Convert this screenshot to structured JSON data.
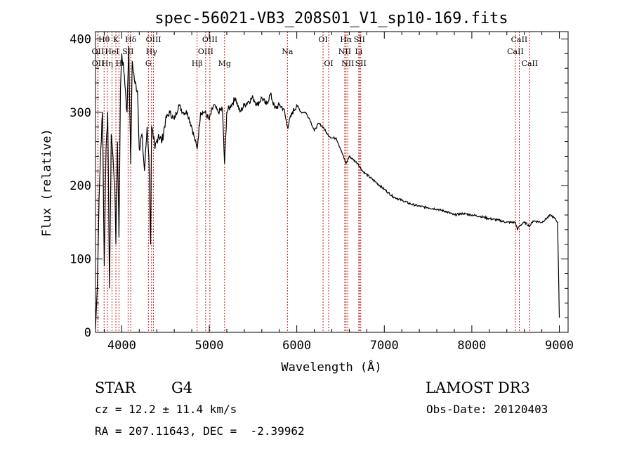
{
  "chart_data": {
    "type": "line",
    "title": "spec-56021-VB3_208S01_V1_sp10-169.fits",
    "xlabel": "Wavelength (Å)",
    "ylabel": "Flux (relative)",
    "xlim": [
      3700,
      9100
    ],
    "ylim": [
      0,
      410
    ],
    "xticks": [
      4000,
      5000,
      6000,
      7000,
      8000,
      9000
    ],
    "yticks": [
      0,
      100,
      200,
      300,
      400
    ],
    "series": [
      {
        "name": "spectrum",
        "x": [
          3700,
          3720,
          3740,
          3760,
          3780,
          3800,
          3820,
          3840,
          3860,
          3880,
          3900,
          3920,
          3933,
          3950,
          3968,
          3985,
          4000,
          4030,
          4060,
          4080,
          4102,
          4120,
          4150,
          4180,
          4200,
          4230,
          4260,
          4290,
          4310,
          4330,
          4340,
          4360,
          4380,
          4420,
          4460,
          4500,
          4550,
          4600,
          4650,
          4700,
          4750,
          4800,
          4861,
          4900,
          4950,
          5000,
          5050,
          5100,
          5150,
          5175,
          5200,
          5250,
          5300,
          5350,
          5400,
          5450,
          5500,
          5550,
          5600,
          5650,
          5700,
          5750,
          5800,
          5850,
          5893,
          5950,
          6000,
          6050,
          6100,
          6150,
          6200,
          6250,
          6300,
          6350,
          6400,
          6450,
          6500,
          6563,
          6600,
          6650,
          6700,
          6750,
          6800,
          6900,
          7000,
          7100,
          7200,
          7300,
          7400,
          7500,
          7600,
          7700,
          7800,
          7900,
          8000,
          8100,
          8200,
          8300,
          8400,
          8498,
          8520,
          8542,
          8600,
          8662,
          8700,
          8800,
          8900,
          8950,
          8980,
          9000
        ],
        "y": [
          5,
          60,
          180,
          250,
          300,
          90,
          250,
          300,
          60,
          270,
          240,
          200,
          120,
          260,
          130,
          330,
          380,
          350,
          300,
          390,
          230,
          370,
          340,
          330,
          250,
          270,
          220,
          280,
          240,
          120,
          280,
          265,
          250,
          270,
          260,
          290,
          300,
          290,
          310,
          300,
          300,
          280,
          250,
          300,
          300,
          290,
          310,
          300,
          305,
          230,
          300,
          310,
          320,
          300,
          310,
          315,
          320,
          310,
          320,
          310,
          325,
          305,
          310,
          305,
          280,
          300,
          310,
          300,
          300,
          290,
          275,
          285,
          280,
          270,
          265,
          265,
          250,
          230,
          240,
          235,
          230,
          220,
          215,
          205,
          195,
          185,
          180,
          175,
          172,
          170,
          168,
          165,
          160,
          162,
          160,
          158,
          155,
          153,
          150,
          150,
          140,
          145,
          150,
          145,
          152,
          150,
          160,
          155,
          150,
          20
        ]
      }
    ],
    "lines": [
      {
        "label": "Hθ",
        "x": 3798,
        "row": 0
      },
      {
        "label": "OII",
        "x": 3727,
        "row": 1
      },
      {
        "label": "OII",
        "x": 3729,
        "row": 2
      },
      {
        "label": "Hη",
        "x": 3835,
        "row": 2
      },
      {
        "label": "HeI",
        "x": 3889,
        "row": 1
      },
      {
        "label": "K",
        "x": 3933,
        "row": 0
      },
      {
        "label": "H",
        "x": 3968,
        "row": 2
      },
      {
        "label": "SII",
        "x": 4072,
        "row": 1
      },
      {
        "label": "Hδ",
        "x": 4102,
        "row": 0
      },
      {
        "label": "OIII",
        "x": 4363,
        "row": 0
      },
      {
        "label": "Hγ",
        "x": 4340,
        "row": 1
      },
      {
        "label": "G",
        "x": 4304,
        "row": 2
      },
      {
        "label": "Hβ",
        "x": 4861,
        "row": 2
      },
      {
        "label": "OIII",
        "x": 4959,
        "row": 1
      },
      {
        "label": "OIII",
        "x": 5007,
        "row": 0
      },
      {
        "label": "Mg",
        "x": 5175,
        "row": 2
      },
      {
        "label": "Na",
        "x": 5893,
        "row": 1
      },
      {
        "label": "OI",
        "x": 6300,
        "row": 0
      },
      {
        "label": "OI",
        "x": 6364,
        "row": 2
      },
      {
        "label": "Hα",
        "x": 6563,
        "row": 0
      },
      {
        "label": "NII",
        "x": 6548,
        "row": 1
      },
      {
        "label": "NII",
        "x": 6583,
        "row": 2
      },
      {
        "label": "SII",
        "x": 6716,
        "row": 0
      },
      {
        "label": "Li",
        "x": 6708,
        "row": 1
      },
      {
        "label": "SII",
        "x": 6731,
        "row": 2
      },
      {
        "label": "CaII",
        "x": 8542,
        "row": 0
      },
      {
        "label": "CaII",
        "x": 8498,
        "row": 1
      },
      {
        "label": "CaII",
        "x": 8662,
        "row": 2
      }
    ]
  },
  "info": {
    "object_class": "STAR",
    "subclass": "G4",
    "survey": "LAMOST DR3",
    "cz": "cz = 12.2 ± 11.4 km/s",
    "obs_date": "Obs-Date: 20120403",
    "coords": "RA = 207.11643, DEC =  -2.39962"
  }
}
